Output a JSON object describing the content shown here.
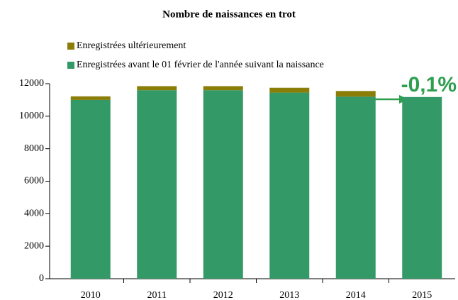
{
  "chart_data": {
    "type": "stacked_bar",
    "title": "Nombre de naissances en trot",
    "categories": [
      "2010",
      "2011",
      "2012",
      "2013",
      "2014",
      "2015"
    ],
    "series": [
      {
        "name": "Enregistrées avant le 01 février de l'année suivant la naissance",
        "color": "#339966",
        "values": [
          11000,
          11600,
          11600,
          11450,
          11200,
          11180
        ]
      },
      {
        "name": "Enregistrées ultérieurement",
        "color": "#8a7d08",
        "values": [
          220,
          250,
          250,
          300,
          350,
          0
        ]
      }
    ],
    "ylim": [
      0,
      12000
    ],
    "yticks": [
      0,
      2000,
      4000,
      6000,
      8000,
      10000,
      12000
    ],
    "annotation": "-0,1%"
  }
}
